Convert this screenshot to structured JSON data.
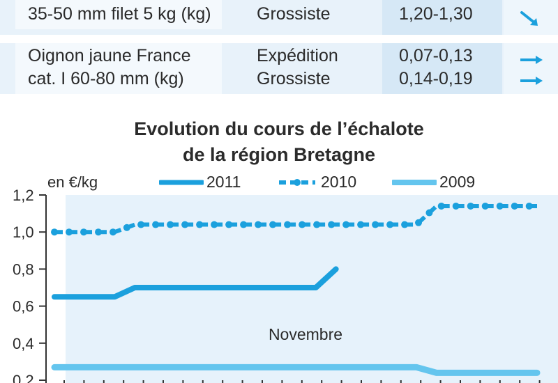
{
  "table": {
    "rows": [
      {
        "product_lines": [
          "35-50 mm filet 5 kg (kg)"
        ],
        "stages": [
          "Grossiste"
        ],
        "prices": [
          "1,20-1,30"
        ],
        "trends": [
          "down-icon"
        ]
      },
      {
        "product_lines": [
          "Oignon jaune France",
          "cat. I 60-80 mm (kg)"
        ],
        "stages": [
          "Expédition",
          "Grossiste"
        ],
        "prices": [
          "0,07-0,13",
          "0,14-0,19"
        ],
        "trends": [
          "stable-icon",
          "stable-icon"
        ]
      }
    ]
  },
  "chart_data": {
    "type": "line",
    "title": "Evolution du cours de l’échalote de la région Bretagne",
    "title_lines": [
      "Evolution du cours de l’échalote",
      "de la région Bretagne"
    ],
    "ylabel": "en €/kg",
    "ylim": [
      0.2,
      1.2
    ],
    "yticks": [
      "1,2",
      "1,0",
      "0,8",
      "0,6",
      "0,4",
      "0,2"
    ],
    "ytick_values": [
      1.2,
      1.0,
      0.8,
      0.6,
      0.4,
      0.2
    ],
    "annotation": "Novembre",
    "legend_position": "top",
    "series": [
      {
        "name": "2011",
        "style": "solid-thick",
        "color": "#1ba0dd",
        "x": [
          1,
          4,
          5,
          14,
          15
        ],
        "values": [
          0.65,
          0.65,
          0.7,
          0.7,
          0.8
        ]
      },
      {
        "name": "2010",
        "style": "dashed-dots",
        "color": "#1ba0dd",
        "x": [
          1,
          4,
          5,
          19,
          20,
          25
        ],
        "values": [
          1.0,
          1.0,
          1.04,
          1.04,
          1.14,
          1.14
        ]
      },
      {
        "name": "2009",
        "style": "solid-light",
        "color": "#64c5ee",
        "x": [
          1,
          19,
          20,
          25
        ],
        "values": [
          0.27,
          0.27,
          0.24,
          0.24
        ]
      }
    ],
    "x_range": [
      0,
      25
    ]
  },
  "colors": {
    "accent": "#1ba0dd",
    "accent_light": "#64c5ee",
    "plot_bg": "#e6f2fb"
  }
}
